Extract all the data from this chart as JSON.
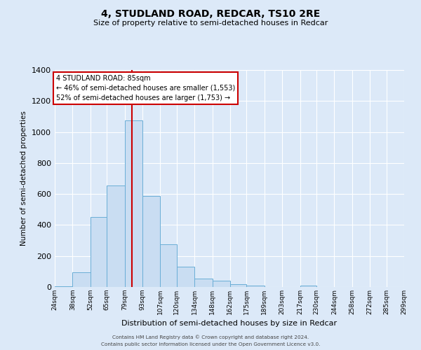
{
  "title": "4, STUDLAND ROAD, REDCAR, TS10 2RE",
  "subtitle": "Size of property relative to semi-detached houses in Redcar",
  "xlabel": "Distribution of semi-detached houses by size in Redcar",
  "ylabel": "Number of semi-detached properties",
  "footer_line1": "Contains HM Land Registry data © Crown copyright and database right 2024.",
  "footer_line2": "Contains public sector information licensed under the Open Government Licence v3.0.",
  "bin_edges": [
    24,
    38,
    52,
    65,
    79,
    93,
    107,
    120,
    134,
    148,
    162,
    175,
    189,
    203,
    217,
    230,
    244,
    258,
    272,
    285,
    299
  ],
  "bin_labels": [
    "24sqm",
    "38sqm",
    "52sqm",
    "65sqm",
    "79sqm",
    "93sqm",
    "107sqm",
    "120sqm",
    "134sqm",
    "148sqm",
    "162sqm",
    "175sqm",
    "189sqm",
    "203sqm",
    "217sqm",
    "230sqm",
    "244sqm",
    "258sqm",
    "272sqm",
    "285sqm",
    "299sqm"
  ],
  "bar_heights": [
    5,
    95,
    450,
    655,
    1075,
    585,
    275,
    130,
    55,
    40,
    20,
    10,
    0,
    0,
    10,
    0,
    0,
    0,
    0,
    0
  ],
  "bar_color": "#c9ddf2",
  "bar_edge_color": "#6aaed6",
  "property_size": 85,
  "annotation_text_line1": "4 STUDLAND ROAD: 85sqm",
  "annotation_text_line2": "← 46% of semi-detached houses are smaller (1,553)",
  "annotation_text_line3": "52% of semi-detached houses are larger (1,753) →",
  "vline_color": "#cc0000",
  "annotation_box_edge_color": "#cc0000",
  "ylim": [
    0,
    1400
  ],
  "yticks": [
    0,
    200,
    400,
    600,
    800,
    1000,
    1200,
    1400
  ],
  "bg_color": "#dce9f8",
  "plot_bg_color": "#dce9f8",
  "grid_color": "#ffffff"
}
